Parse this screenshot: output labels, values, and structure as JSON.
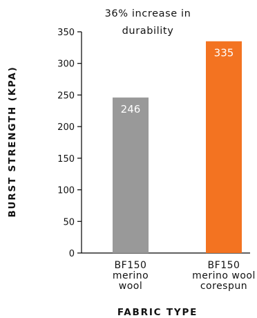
{
  "chart_data": {
    "type": "bar",
    "title": "36% increase in durability",
    "title_lines": [
      "36% increase in",
      "durability"
    ],
    "xlabel": "FABRIC TYPE",
    "ylabel": "BURST STRENGTH (KPA)",
    "categories": [
      "BF150 merino wool",
      "BF150 merino wool corespun"
    ],
    "category_label_lines": [
      [
        "BF150",
        "merino",
        "wool"
      ],
      [
        "BF150",
        "merino wool",
        "corespun"
      ]
    ],
    "values": [
      246,
      335
    ],
    "data_labels": [
      "246",
      "335"
    ],
    "bar_colors": [
      "#999999",
      "#f37321"
    ],
    "ylim": [
      0,
      350
    ],
    "yticks": [
      0,
      50,
      100,
      150,
      200,
      250,
      300,
      350
    ],
    "grid": false,
    "legend": "none"
  }
}
